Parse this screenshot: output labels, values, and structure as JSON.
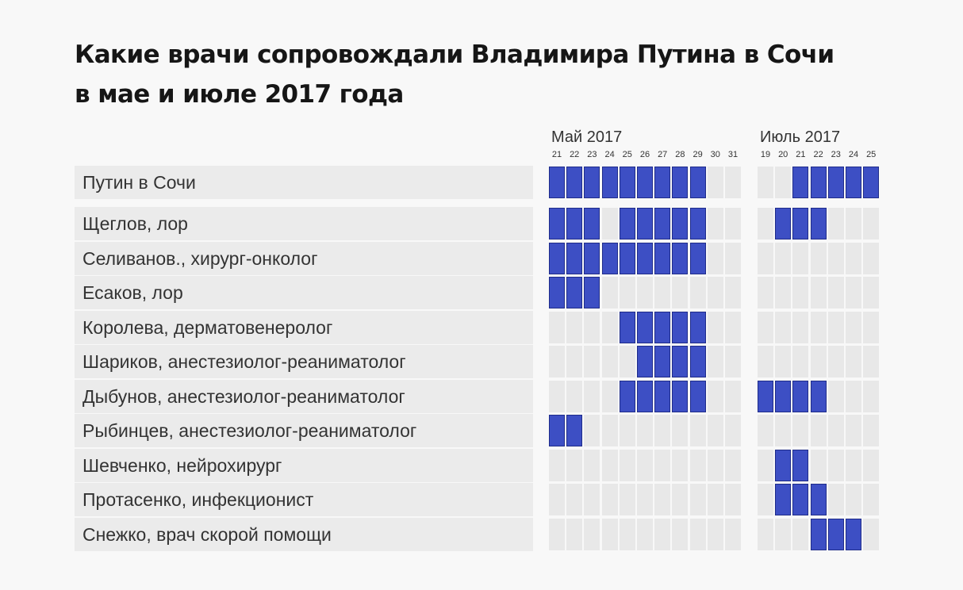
{
  "chart_data": {
    "type": "table",
    "title_lines": [
      "Какие врачи сопровождали Владимира Путина в Сочи",
      "в мае и июле 2017 года"
    ],
    "groups": [
      {
        "label": "Май 2017",
        "days": [
          "21",
          "22",
          "23",
          "24",
          "25",
          "26",
          "27",
          "28",
          "29",
          "30",
          "31"
        ]
      },
      {
        "label": "Июль 2017",
        "days": [
          "19",
          "20",
          "21",
          "22",
          "23",
          "24",
          "25"
        ]
      }
    ],
    "rows": [
      {
        "label": "Путин в Сочи",
        "may": [
          1,
          1,
          1,
          1,
          1,
          1,
          1,
          1,
          1,
          0,
          0
        ],
        "july": [
          0,
          0,
          1,
          1,
          1,
          1,
          1
        ]
      },
      {
        "label": "Щеглов, лор",
        "may": [
          1,
          1,
          1,
          0,
          1,
          1,
          1,
          1,
          1,
          0,
          0
        ],
        "july": [
          0,
          1,
          1,
          1,
          0,
          0,
          0
        ]
      },
      {
        "label": "Селиванов., хирург-онколог",
        "may": [
          1,
          1,
          1,
          1,
          1,
          1,
          1,
          1,
          1,
          0,
          0
        ],
        "july": [
          0,
          0,
          0,
          0,
          0,
          0,
          0
        ]
      },
      {
        "label": "Есаков, лор",
        "may": [
          1,
          1,
          1,
          0,
          0,
          0,
          0,
          0,
          0,
          0,
          0
        ],
        "july": [
          0,
          0,
          0,
          0,
          0,
          0,
          0
        ]
      },
      {
        "label": "Королева, дерматовенеролог",
        "may": [
          0,
          0,
          0,
          0,
          1,
          1,
          1,
          1,
          1,
          0,
          0
        ],
        "july": [
          0,
          0,
          0,
          0,
          0,
          0,
          0
        ]
      },
      {
        "label": "Шариков, анестезиолог-реаниматолог",
        "may": [
          0,
          0,
          0,
          0,
          0,
          1,
          1,
          1,
          1,
          0,
          0
        ],
        "july": [
          0,
          0,
          0,
          0,
          0,
          0,
          0
        ]
      },
      {
        "label": "Дыбунов, анестезиолог-реаниматолог",
        "may": [
          0,
          0,
          0,
          0,
          1,
          1,
          1,
          1,
          1,
          0,
          0
        ],
        "july": [
          1,
          1,
          1,
          1,
          0,
          0,
          0
        ]
      },
      {
        "label": "Рыбинцев, анестезиолог-реаниматолог",
        "may": [
          1,
          1,
          0,
          0,
          0,
          0,
          0,
          0,
          0,
          0,
          0
        ],
        "july": [
          0,
          0,
          0,
          0,
          0,
          0,
          0
        ]
      },
      {
        "label": "Шевченко, нейрохирург",
        "may": [
          0,
          0,
          0,
          0,
          0,
          0,
          0,
          0,
          0,
          0,
          0
        ],
        "july": [
          0,
          1,
          1,
          0,
          0,
          0,
          0
        ]
      },
      {
        "label": "Протасенко, инфекционист",
        "may": [
          0,
          0,
          0,
          0,
          0,
          0,
          0,
          0,
          0,
          0,
          0
        ],
        "july": [
          0,
          1,
          1,
          1,
          0,
          0,
          0
        ]
      },
      {
        "label": "Снежко, врач скорой помощи",
        "may": [
          0,
          0,
          0,
          0,
          0,
          0,
          0,
          0,
          0,
          0,
          0
        ],
        "july": [
          0,
          0,
          0,
          1,
          1,
          1,
          0
        ]
      }
    ],
    "colors": {
      "on": "#3d4fc4",
      "off": "#e8e8e8",
      "label_bg": "#ebebeb"
    }
  }
}
